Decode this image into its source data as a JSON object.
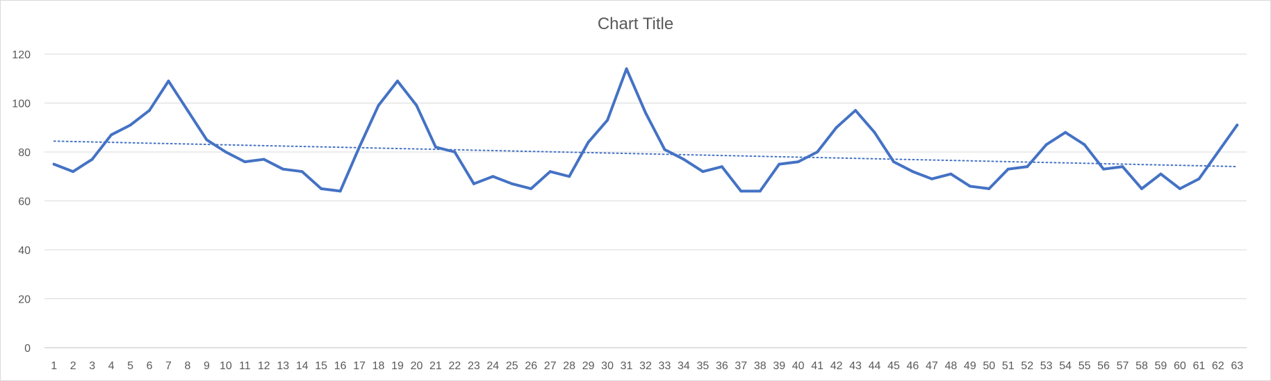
{
  "chart_data": {
    "type": "line",
    "title": "Chart Title",
    "xlabel": "",
    "ylabel": "",
    "ylim": [
      0,
      120
    ],
    "yticks": [
      0,
      20,
      40,
      60,
      80,
      100,
      120
    ],
    "grid": true,
    "legend": "none",
    "categories": [
      "1",
      "2",
      "3",
      "4",
      "5",
      "6",
      "7",
      "8",
      "9",
      "10",
      "11",
      "12",
      "13",
      "14",
      "15",
      "16",
      "17",
      "18",
      "19",
      "20",
      "21",
      "22",
      "23",
      "24",
      "25",
      "26",
      "27",
      "28",
      "29",
      "30",
      "31",
      "32",
      "33",
      "34",
      "35",
      "36",
      "37",
      "38",
      "39",
      "40",
      "41",
      "42",
      "43",
      "44",
      "45",
      "46",
      "47",
      "48",
      "49",
      "50",
      "51",
      "52",
      "53",
      "54",
      "55",
      "56",
      "57",
      "58",
      "59",
      "60",
      "61",
      "62",
      "63"
    ],
    "series": [
      {
        "values": [
          75,
          72,
          77,
          87,
          91,
          97,
          109,
          97,
          85,
          80,
          76,
          77,
          73,
          72,
          65,
          64,
          82,
          99,
          109,
          99,
          82,
          80,
          67,
          70,
          67,
          65,
          72,
          70,
          84,
          93,
          114,
          96,
          81,
          77,
          72,
          74,
          64,
          64,
          75,
          76,
          80,
          90,
          97,
          88,
          76,
          72,
          69,
          71,
          66,
          65,
          73,
          74,
          83,
          88,
          83,
          73,
          74,
          65,
          71,
          65,
          69,
          80,
          91
        ],
        "color": "#4472c4"
      }
    ],
    "trendline": {
      "type": "linear",
      "style": "dotted",
      "color": "#4472c4"
    }
  }
}
